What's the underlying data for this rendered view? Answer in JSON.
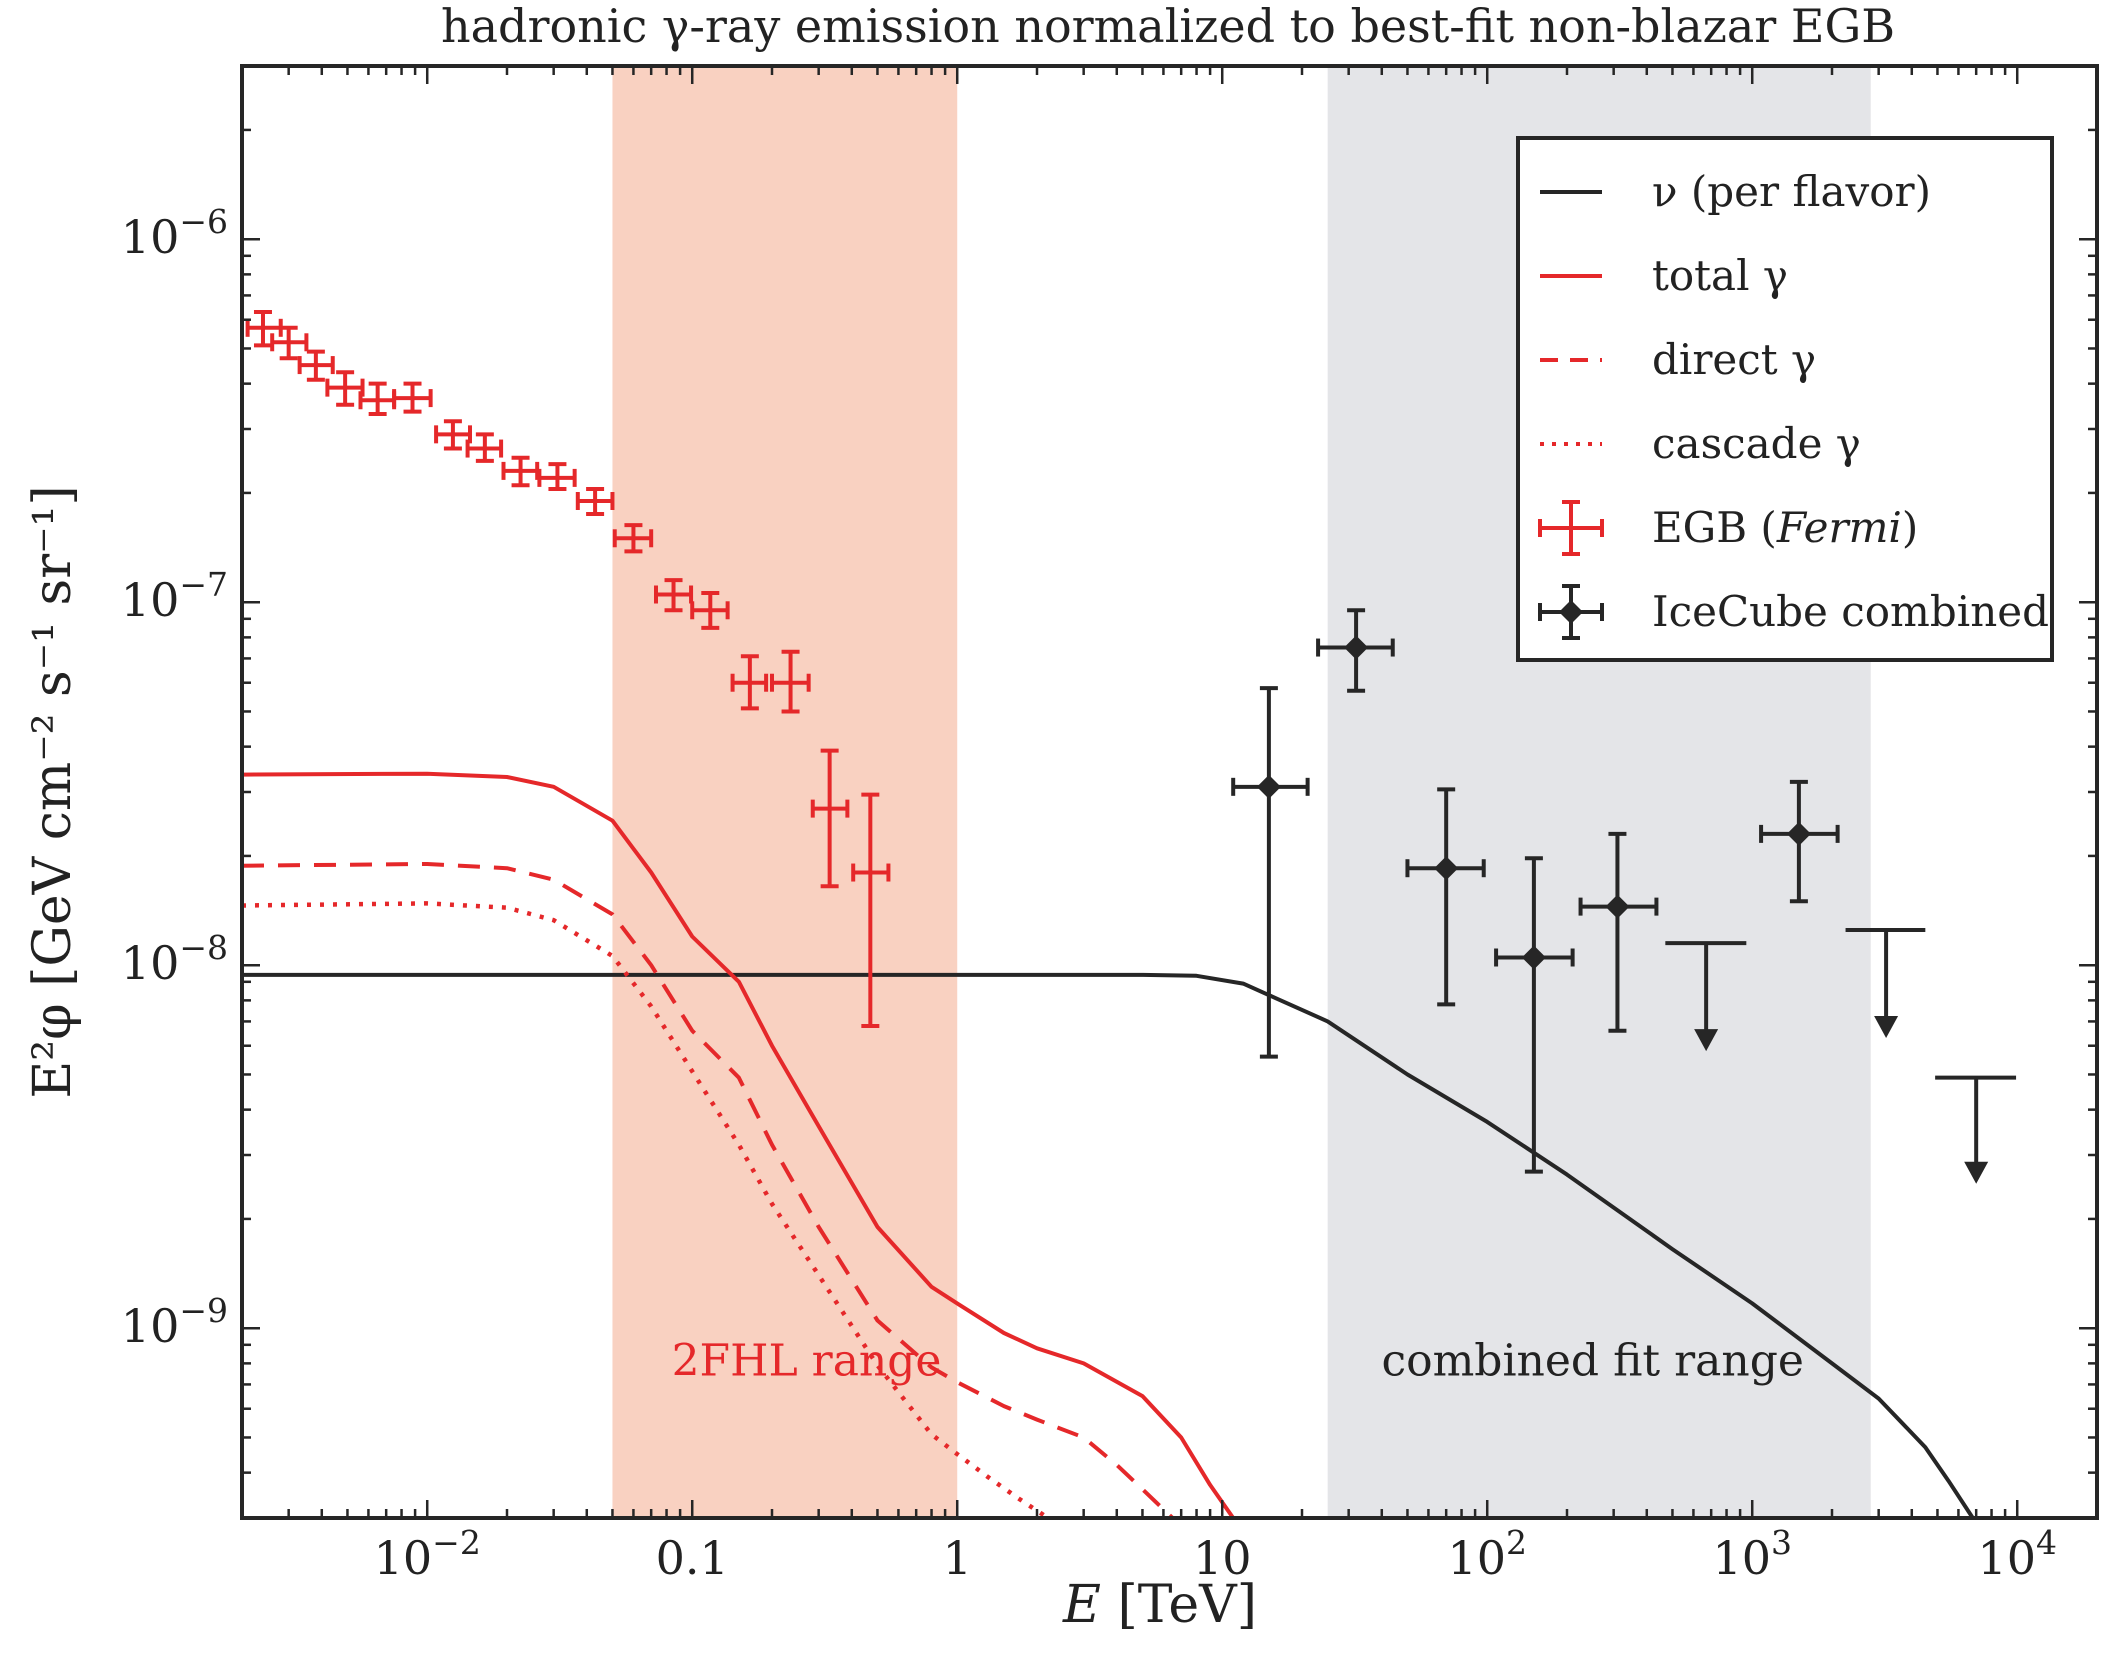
{
  "colors": {
    "red": "#e5282a",
    "black": "#262626",
    "band_2fhl": "#f9d1c1",
    "band_fit": "#e4e5e8",
    "frame": "#262626"
  },
  "chart_data": {
    "type": "line",
    "title": "hadronic γ-ray emission normalized to best-fit non-blazar EGB",
    "xlabel": {
      "italic": "E",
      "rest": " [TeV]"
    },
    "ylabel": "E²φ [GeV cm⁻² s⁻¹ sr⁻¹]",
    "xscale": "log",
    "yscale": "log",
    "xlim": [
      0.002,
      20000
    ],
    "ylim": [
      3e-10,
      3e-06
    ],
    "xticks": [
      {
        "value": 0.01,
        "base": "10",
        "exp": "−2"
      },
      {
        "value": 0.1,
        "base": "0.1",
        "exp": ""
      },
      {
        "value": 1,
        "base": "1",
        "exp": ""
      },
      {
        "value": 10,
        "base": "10",
        "exp": ""
      },
      {
        "value": 100,
        "base": "10",
        "exp": "2"
      },
      {
        "value": 1000,
        "base": "10",
        "exp": "3"
      },
      {
        "value": 10000,
        "base": "10",
        "exp": "4"
      }
    ],
    "yticks": [
      {
        "value": 1e-09,
        "base": "10",
        "exp": "−9"
      },
      {
        "value": 1e-08,
        "base": "10",
        "exp": "−8"
      },
      {
        "value": 1e-07,
        "base": "10",
        "exp": "−7"
      },
      {
        "value": 1e-06,
        "base": "10",
        "exp": "−6"
      }
    ],
    "bands": [
      {
        "name": "2FHL range",
        "x": [
          0.05,
          1
        ],
        "color": "#f9d1c1",
        "text_color": "#e5282a",
        "label_at": [
          0.27,
          7.4e-10
        ]
      },
      {
        "name": "combined fit range",
        "x": [
          25,
          2800
        ],
        "color": "#e4e5e8",
        "text_color": "#222222",
        "label_at": [
          250,
          7.4e-10
        ]
      }
    ],
    "series": [
      {
        "name": "ν (per flavor)",
        "style": "solid",
        "color": "#262626",
        "points": [
          [
            0.002,
            9.4e-09
          ],
          [
            1,
            9.4e-09
          ],
          [
            5,
            9.4e-09
          ],
          [
            8,
            9.35e-09
          ],
          [
            12,
            8.9e-09
          ],
          [
            16,
            8.1e-09
          ],
          [
            25,
            7e-09
          ],
          [
            50,
            5e-09
          ],
          [
            100,
            3.7e-09
          ],
          [
            200,
            2.65e-09
          ],
          [
            500,
            1.65e-09
          ],
          [
            1000,
            1.17e-09
          ],
          [
            2000,
            8e-10
          ],
          [
            3000,
            6.4e-10
          ],
          [
            4500,
            4.7e-10
          ],
          [
            5500,
            3.8e-10
          ],
          [
            6800,
            3e-10
          ]
        ]
      },
      {
        "name": "total γ",
        "style": "solid",
        "color": "#e5282a",
        "points": [
          [
            0.002,
            3.35e-08
          ],
          [
            0.01,
            3.37e-08
          ],
          [
            0.02,
            3.3e-08
          ],
          [
            0.03,
            3.1e-08
          ],
          [
            0.05,
            2.5e-08
          ],
          [
            0.07,
            1.8e-08
          ],
          [
            0.1,
            1.2e-08
          ],
          [
            0.15,
            9e-09
          ],
          [
            0.2,
            6e-09
          ],
          [
            0.3,
            3.6e-09
          ],
          [
            0.5,
            1.9e-09
          ],
          [
            0.8,
            1.3e-09
          ],
          [
            1,
            1.17e-09
          ],
          [
            1.5,
            9.7e-10
          ],
          [
            2,
            8.8e-10
          ],
          [
            3,
            8e-10
          ],
          [
            5,
            6.5e-10
          ],
          [
            7,
            5e-10
          ],
          [
            9,
            3.7e-10
          ],
          [
            11,
            3e-10
          ]
        ]
      },
      {
        "name": "direct γ",
        "style": "dashed",
        "color": "#e5282a",
        "points": [
          [
            0.002,
            1.88e-08
          ],
          [
            0.01,
            1.9e-08
          ],
          [
            0.02,
            1.85e-08
          ],
          [
            0.03,
            1.72e-08
          ],
          [
            0.05,
            1.38e-08
          ],
          [
            0.07,
            1e-08
          ],
          [
            0.1,
            6.6e-09
          ],
          [
            0.15,
            4.9e-09
          ],
          [
            0.2,
            3.2e-09
          ],
          [
            0.3,
            1.9e-09
          ],
          [
            0.5,
            1.05e-09
          ],
          [
            0.8,
            7.8e-10
          ],
          [
            1,
            7.1e-10
          ],
          [
            1.5,
            6.1e-10
          ],
          [
            2,
            5.6e-10
          ],
          [
            3,
            5e-10
          ],
          [
            4,
            4.2e-10
          ],
          [
            5,
            3.6e-10
          ],
          [
            6.5,
            3e-10
          ]
        ]
      },
      {
        "name": "cascade γ",
        "style": "dotted",
        "color": "#e5282a",
        "points": [
          [
            0.002,
            1.46e-08
          ],
          [
            0.01,
            1.48e-08
          ],
          [
            0.02,
            1.44e-08
          ],
          [
            0.03,
            1.33e-08
          ],
          [
            0.05,
            1.06e-08
          ],
          [
            0.07,
            7.7e-09
          ],
          [
            0.1,
            5.1e-09
          ],
          [
            0.15,
            3.2e-09
          ],
          [
            0.2,
            2.2e-09
          ],
          [
            0.3,
            1.4e-09
          ],
          [
            0.5,
            7.9e-10
          ],
          [
            0.8,
            5.1e-10
          ],
          [
            1,
            4.5e-10
          ],
          [
            1.3,
            3.9e-10
          ],
          [
            1.7,
            3.4e-10
          ],
          [
            2.2,
            3e-10
          ]
        ]
      }
    ],
    "errorbars": [
      {
        "name": "EGB (Fermi)",
        "name_parts": [
          "EGB (",
          "Fermi",
          ")"
        ],
        "color": "#e5282a",
        "marker": "none",
        "points": [
          {
            "x": 0.0024,
            "y": 5.7e-07,
            "xlo": 0.0021,
            "xhi": 0.0028,
            "ylo": 5.1e-07,
            "yhi": 6.3e-07
          },
          {
            "x": 0.003,
            "y": 5.2e-07,
            "xlo": 0.0026,
            "xhi": 0.0035,
            "ylo": 4.7e-07,
            "yhi": 5.7e-07
          },
          {
            "x": 0.0038,
            "y": 4.5e-07,
            "xlo": 0.0033,
            "xhi": 0.0044,
            "ylo": 4.1e-07,
            "yhi": 4.9e-07
          },
          {
            "x": 0.0049,
            "y": 3.9e-07,
            "xlo": 0.0042,
            "xhi": 0.0057,
            "ylo": 3.5e-07,
            "yhi": 4.3e-07
          },
          {
            "x": 0.0065,
            "y": 3.6e-07,
            "xlo": 0.0056,
            "xhi": 0.0075,
            "ylo": 3.3e-07,
            "yhi": 4e-07
          },
          {
            "x": 0.0088,
            "y": 3.65e-07,
            "xlo": 0.0075,
            "xhi": 0.0103,
            "ylo": 3.35e-07,
            "yhi": 4e-07
          },
          {
            "x": 0.0125,
            "y": 2.9e-07,
            "xlo": 0.0108,
            "xhi": 0.0145,
            "ylo": 2.65e-07,
            "yhi": 3.15e-07
          },
          {
            "x": 0.0165,
            "y": 2.65e-07,
            "xlo": 0.0142,
            "xhi": 0.019,
            "ylo": 2.45e-07,
            "yhi": 2.9e-07
          },
          {
            "x": 0.0225,
            "y": 2.3e-07,
            "xlo": 0.0194,
            "xhi": 0.026,
            "ylo": 2.1e-07,
            "yhi": 2.5e-07
          },
          {
            "x": 0.031,
            "y": 2.2e-07,
            "xlo": 0.0265,
            "xhi": 0.036,
            "ylo": 2.05e-07,
            "yhi": 2.4e-07
          },
          {
            "x": 0.043,
            "y": 1.9e-07,
            "xlo": 0.037,
            "xhi": 0.05,
            "ylo": 1.75e-07,
            "yhi": 2.05e-07
          },
          {
            "x": 0.06,
            "y": 1.5e-07,
            "xlo": 0.051,
            "xhi": 0.07,
            "ylo": 1.38e-07,
            "yhi": 1.63e-07
          },
          {
            "x": 0.085,
            "y": 1.05e-07,
            "xlo": 0.073,
            "xhi": 0.099,
            "ylo": 9.5e-08,
            "yhi": 1.15e-07
          },
          {
            "x": 0.117,
            "y": 9.5e-08,
            "xlo": 0.1,
            "xhi": 0.136,
            "ylo": 8.5e-08,
            "yhi": 1.06e-07
          },
          {
            "x": 0.165,
            "y": 6e-08,
            "xlo": 0.142,
            "xhi": 0.19,
            "ylo": 5.1e-08,
            "yhi": 7.1e-08
          },
          {
            "x": 0.235,
            "y": 6e-08,
            "xlo": 0.2,
            "xhi": 0.275,
            "ylo": 5e-08,
            "yhi": 7.3e-08
          },
          {
            "x": 0.33,
            "y": 2.7e-08,
            "xlo": 0.285,
            "xhi": 0.385,
            "ylo": 1.65e-08,
            "yhi": 3.9e-08
          },
          {
            "x": 0.47,
            "y": 1.8e-08,
            "xlo": 0.405,
            "xhi": 0.55,
            "ylo": 6.8e-09,
            "yhi": 2.95e-08
          }
        ]
      },
      {
        "name": "IceCube combined",
        "color": "#262626",
        "marker": "diamond",
        "points": [
          {
            "x": 15,
            "y": 3.1e-08,
            "xlo": 11,
            "xhi": 21,
            "ylo": 5.6e-09,
            "yhi": 5.8e-08
          },
          {
            "x": 32,
            "y": 7.5e-08,
            "xlo": 23,
            "xhi": 44,
            "ylo": 5.7e-08,
            "yhi": 9.5e-08
          },
          {
            "x": 70,
            "y": 1.85e-08,
            "xlo": 50,
            "xhi": 97,
            "ylo": 7.8e-09,
            "yhi": 3.05e-08
          },
          {
            "x": 150,
            "y": 1.05e-08,
            "xlo": 108,
            "xhi": 210,
            "ylo": 2.7e-09,
            "yhi": 1.97e-08
          },
          {
            "x": 310,
            "y": 1.45e-08,
            "xlo": 225,
            "xhi": 435,
            "ylo": 6.6e-09,
            "yhi": 2.3e-08
          },
          {
            "x": 1500,
            "y": 2.3e-08,
            "xlo": 1080,
            "xhi": 2100,
            "ylo": 1.5e-08,
            "yhi": 3.2e-08
          }
        ],
        "upper_limits": [
          {
            "x": 670,
            "y": 1.15e-08,
            "xlo": 470,
            "xhi": 950,
            "arrow_to": 5.8e-09
          },
          {
            "x": 3200,
            "y": 1.25e-08,
            "xlo": 2250,
            "xhi": 4500,
            "arrow_to": 6.3e-09
          },
          {
            "x": 7000,
            "y": 4.9e-09,
            "xlo": 4900,
            "xhi": 9900,
            "arrow_to": 2.5e-09
          }
        ]
      }
    ],
    "legend": {
      "position": "top-right",
      "entries": [
        "ν (per flavor)",
        "total γ",
        "direct γ",
        "cascade γ",
        "EGB (Fermi)",
        "IceCube combined"
      ]
    }
  }
}
